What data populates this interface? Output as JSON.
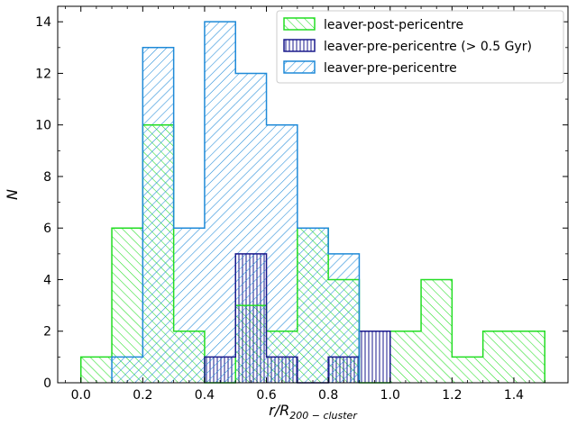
{
  "chart_data": {
    "type": "histogram",
    "xlabel": "r/R",
    "xlabel_subscript": "200 − cluster",
    "ylabel": "N",
    "xlim": [
      -0.075,
      1.575
    ],
    "ylim": [
      0,
      14.6
    ],
    "xticks": [
      0.0,
      0.2,
      0.4,
      0.6,
      0.8,
      1.0,
      1.2,
      1.4
    ],
    "xtick_labels": [
      "0.0",
      "0.2",
      "0.4",
      "0.6",
      "0.8",
      "1.0",
      "1.2",
      "1.4"
    ],
    "yticks": [
      0,
      2,
      4,
      6,
      8,
      10,
      12,
      14
    ],
    "ytick_labels": [
      "0",
      "2",
      "4",
      "6",
      "8",
      "10",
      "12",
      "14"
    ],
    "legend_position": "top-right",
    "grid": false,
    "series": [
      {
        "name": "leaver-post-pericentre",
        "color": "#22dd22",
        "hatch": "backslash",
        "bin_edges": [
          0.0,
          0.1,
          0.2,
          0.3,
          0.4,
          0.5,
          0.6,
          0.7,
          0.8,
          0.9,
          1.0,
          1.1,
          1.2,
          1.3,
          1.4,
          1.5
        ],
        "counts": [
          1,
          6,
          10,
          2,
          0,
          3,
          2,
          6,
          4,
          0,
          2,
          4,
          1,
          2,
          2
        ]
      },
      {
        "name": "leaver-pre-pericentre (> 0.5 Gyr)",
        "color": "#1a1a8c",
        "hatch": "vertical",
        "bin_edges": [
          0.4,
          0.5,
          0.6,
          0.7,
          0.8,
          0.9,
          1.0
        ],
        "counts": [
          1,
          5,
          1,
          0,
          1,
          2
        ]
      },
      {
        "name": "leaver-pre-pericentre",
        "color": "#1f8ad8",
        "hatch": "slash",
        "bin_edges": [
          0.1,
          0.2,
          0.3,
          0.4,
          0.5,
          0.6,
          0.7,
          0.8,
          0.9
        ],
        "counts": [
          1,
          13,
          6,
          14,
          12,
          10,
          6,
          5
        ]
      }
    ]
  }
}
